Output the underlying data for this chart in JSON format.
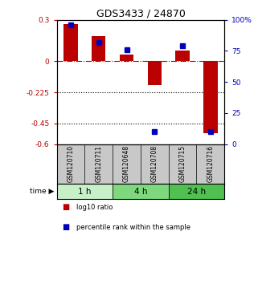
{
  "title": "GDS3433 / 24870",
  "samples": [
    "GSM120710",
    "GSM120711",
    "GSM120648",
    "GSM120708",
    "GSM120715",
    "GSM120716"
  ],
  "log10_ratio": [
    0.27,
    0.18,
    0.05,
    -0.17,
    0.08,
    -0.52
  ],
  "percentile_rank": [
    96,
    82,
    76,
    10,
    79,
    10
  ],
  "time_groups": [
    {
      "label": "1 h",
      "start": 0,
      "end": 2,
      "color": "#c8f0c8"
    },
    {
      "label": "4 h",
      "start": 2,
      "end": 4,
      "color": "#7ed87e"
    },
    {
      "label": "24 h",
      "start": 4,
      "end": 6,
      "color": "#50c050"
    }
  ],
  "ylim_left": [
    -0.6,
    0.3
  ],
  "ylim_right": [
    0,
    100
  ],
  "yticks_left": [
    0.3,
    0.0,
    -0.225,
    -0.45,
    -0.6
  ],
  "ytick_labels_left": [
    "0.3",
    "0",
    "-0.225",
    "-0.45",
    "-0.6"
  ],
  "yticks_right": [
    100,
    75,
    50,
    25,
    0
  ],
  "ytick_labels_right": [
    "100%",
    "75",
    "50",
    "25",
    "0"
  ],
  "bar_color_red": "#bb0000",
  "bar_color_blue": "#0000bb",
  "background_color": "#ffffff",
  "hline_y": 0,
  "dotted_lines": [
    -0.225,
    -0.45
  ],
  "bar_width": 0.5,
  "marker_size": 4
}
